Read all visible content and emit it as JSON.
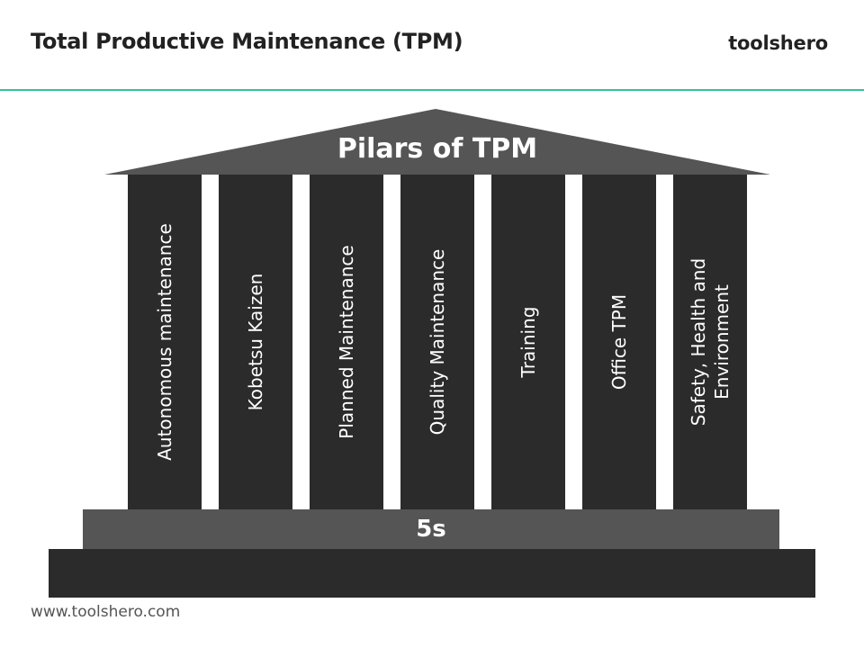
{
  "header": {
    "title": "Total Productive Maintenance (TPM)",
    "brand": "toolshero"
  },
  "diagram": {
    "roof_label": "Pilars of TPM",
    "pillars": [
      "Autonomous maintenance",
      "Kobetsu Kaizen",
      "Planned Maintenance",
      "Quality Maintenance",
      "Training",
      "Office TPM",
      "Safety, Health and Environment"
    ],
    "foundation_label": "5s"
  },
  "footer": {
    "url": "www.toolshero.com"
  },
  "colors": {
    "accent": "#2fc29a",
    "roof": "#555555",
    "pillar": "#2b2b2b",
    "step": "#555555",
    "base": "#2b2b2b"
  }
}
